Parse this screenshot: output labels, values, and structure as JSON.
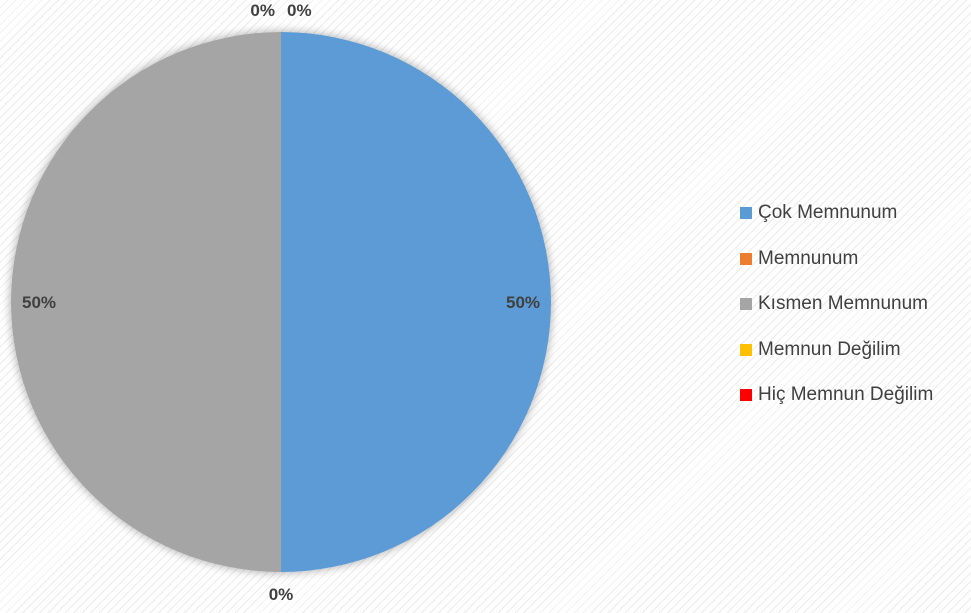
{
  "chart_data": {
    "type": "pie",
    "categories": [
      "Çok Memnunum",
      "Memnunum",
      "Kısmen Memnunum",
      "Memnun Değilim",
      "Hiç Memnun Değilim"
    ],
    "values": [
      50,
      0,
      50,
      0,
      0
    ],
    "data_labels": [
      "50%",
      "0%",
      "50%",
      "0%",
      "0%"
    ],
    "colors": [
      "#5b9bd5",
      "#ed7d31",
      "#a5a5a5",
      "#ffc000",
      "#ff0000"
    ],
    "legend_position": "right",
    "label_position": "outside-end"
  }
}
